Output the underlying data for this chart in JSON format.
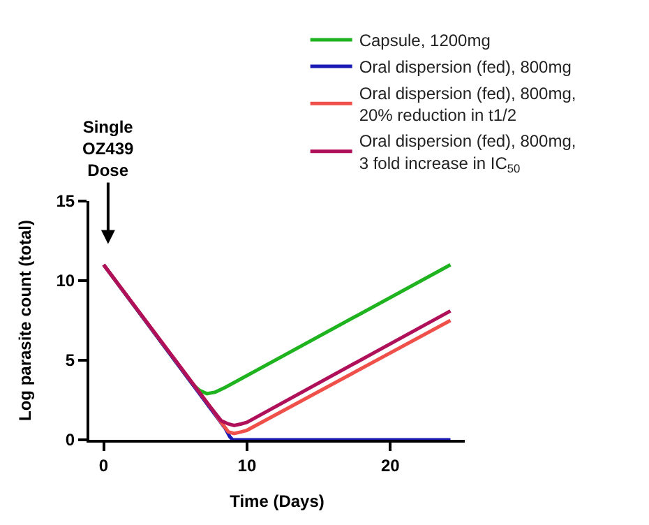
{
  "chart_data": {
    "type": "line",
    "xlabel": "Time (Days)",
    "ylabel": "Log parasite count (total)",
    "xlim": [
      -1,
      25.2
    ],
    "ylim": [
      0,
      15
    ],
    "xticks": [
      0,
      10,
      20
    ],
    "yticks": [
      0,
      5,
      10,
      15
    ],
    "legend": "top right",
    "marker": "none",
    "line_style": "solid",
    "annotations": [
      "Single\nOZ439\nDose"
    ],
    "series": [
      {
        "name": "Capsule, 1200mg",
        "color": "#1fb41f",
        "x": [
          0,
          6.2,
          6.7,
          7.2,
          7.8,
          8.5,
          24.2
        ],
        "values": [
          11,
          3.5,
          3.1,
          2.9,
          3.0,
          3.3,
          11
        ]
      },
      {
        "name": "Oral dispersion (fed), 800mg",
        "color": "#1a1ab4",
        "x": [
          0,
          8.5,
          8.8,
          9,
          24.2
        ],
        "values": [
          11,
          0.7,
          0.2,
          0,
          0
        ]
      },
      {
        "name": "Oral dispersion (fed), 800mg,\n20% reduction in t1/2",
        "color": "#f0504a",
        "x": [
          0,
          7.5,
          8.2,
          8.7,
          9.1,
          9.6,
          10,
          24.2
        ],
        "values": [
          11,
          2.0,
          1.1,
          0.5,
          0.4,
          0.5,
          0.6,
          7.5
        ]
      },
      {
        "name": "Oral dispersion (fed), 800mg,\n3 fold increase in IC$_{50}$",
        "color": "#b0105a",
        "x": [
          0,
          7.5,
          8.2,
          8.7,
          9.1,
          9.6,
          10,
          24.2
        ],
        "values": [
          11,
          2.0,
          1.2,
          1.0,
          0.9,
          1.0,
          1.1,
          8.1
        ]
      }
    ]
  }
}
